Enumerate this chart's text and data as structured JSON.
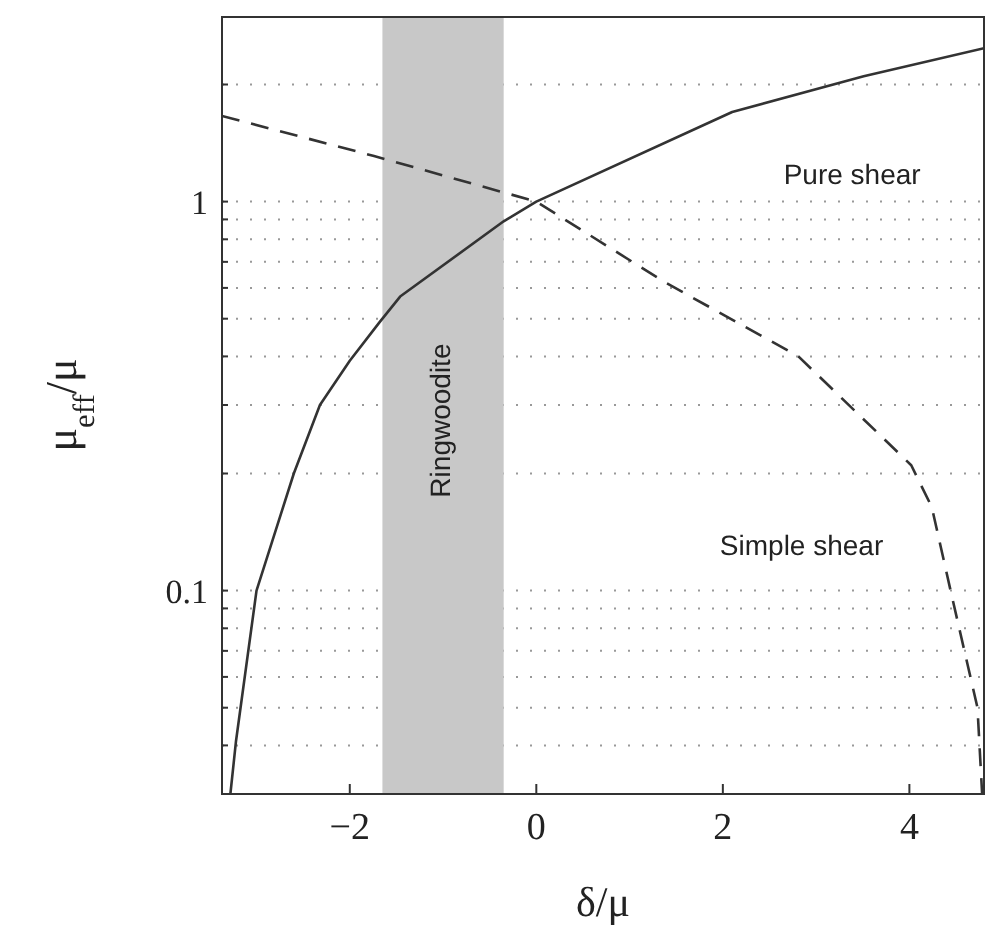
{
  "chart_data": {
    "type": "line",
    "xlabel": "δ/μ",
    "ylabel": "μ$_{eff}$/μ",
    "log": "y",
    "grid": "y",
    "marker": "none",
    "xlim": [
      -3.37,
      4.8
    ],
    "xticks": [
      -2,
      0,
      2,
      4
    ],
    "ylim": [
      0.03,
      3
    ],
    "yticks": [
      {
        "value": 0.03,
        "label": null
      },
      {
        "value": 0.04,
        "label": null
      },
      {
        "value": 0.05,
        "label": null
      },
      {
        "value": 0.06,
        "label": null
      },
      {
        "value": 0.07,
        "label": null
      },
      {
        "value": 0.08,
        "label": null
      },
      {
        "value": 0.09,
        "label": null
      },
      0.1,
      {
        "value": 0.2,
        "label": null
      },
      {
        "value": 0.3,
        "label": null
      },
      {
        "value": 0.4,
        "label": null
      },
      {
        "value": 0.5,
        "label": null
      },
      {
        "value": 0.6,
        "label": null
      },
      {
        "value": 0.7,
        "label": null
      },
      {
        "value": 0.8,
        "label": null
      },
      {
        "value": 0.9,
        "label": null
      },
      1,
      {
        "value": 2,
        "label": null
      }
    ],
    "series": [
      {
        "name": "Pure shear",
        "color": "#333333",
        "line_style": "solid",
        "x": [
          -3.28,
          -3.22,
          -3.0,
          -2.6,
          -2.32,
          -2.0,
          -1.68,
          -1.46,
          -0.35,
          0,
          2.1,
          3.51,
          4.8
        ],
        "values": [
          0.03,
          0.041,
          0.1,
          0.2,
          0.3,
          0.39,
          0.49,
          0.57,
          0.89,
          1,
          1.7,
          2.1,
          2.48
        ]
      },
      {
        "name": "Simple shear",
        "color": "#333333",
        "line_style": "dashed",
        "x": [
          -3.37,
          -1.74,
          0,
          1.38,
          2.81,
          4.02,
          4.24,
          4.45,
          4.73,
          4.78
        ],
        "values": [
          1.66,
          1.31,
          1,
          0.62,
          0.4,
          0.21,
          0.164,
          0.098,
          0.05,
          0.03
        ]
      }
    ],
    "bands": [
      {
        "axis": "x",
        "from": -1.65,
        "to": -0.35,
        "label": "Ringwoodite",
        "color": "#c8c8c8"
      }
    ]
  }
}
